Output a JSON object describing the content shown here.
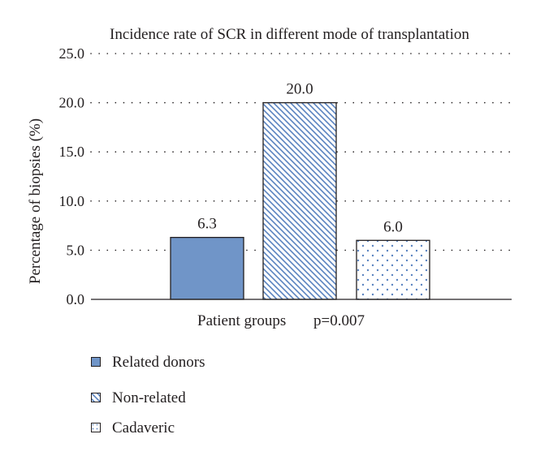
{
  "chart_data": {
    "type": "bar",
    "title": "Incidence rate of SCR in different mode of transplantation",
    "xlabel": "Patient groups",
    "xlabel_note": "p=0.007",
    "ylabel": "Percentage of biopsies (%)",
    "ylim": [
      0,
      25
    ],
    "yticks": [
      "0.0",
      "5.0",
      "10.0",
      "15.0",
      "20.0",
      "25.0"
    ],
    "grid": "horizontal-dotted",
    "legend_position": "bottom-left",
    "categories": [
      "Related donors",
      "Non-related",
      "Cadaveric"
    ],
    "values": [
      6.3,
      20.0,
      6.0
    ],
    "value_labels": [
      "6.3",
      "20.0",
      "6.0"
    ],
    "series_styles": [
      {
        "fill": "solid",
        "color": "#7095c8"
      },
      {
        "fill": "diagonal-hatch",
        "color": "#5a83c0"
      },
      {
        "fill": "dots",
        "color": "#5a83c0"
      }
    ]
  }
}
